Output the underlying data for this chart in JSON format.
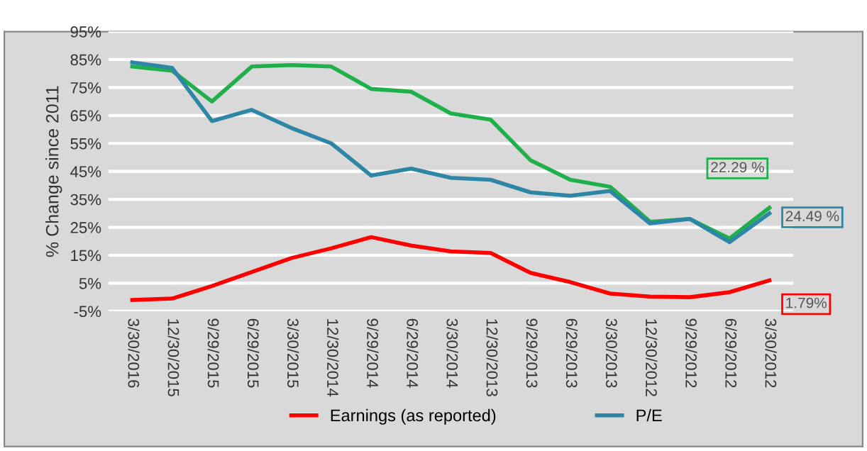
{
  "chart_data": {
    "type": "line",
    "ylabel": "% Change since 2011",
    "categories": [
      "3/30/2016",
      "12/30/2015",
      "9/29/2015",
      "6/29/2015",
      "3/30/2015",
      "12/30/2014",
      "9/29/2014",
      "6/29/2014",
      "3/30/2014",
      "12/30/2013",
      "9/29/2013",
      "6/29/2013",
      "3/30/2013",
      "12/30/2012",
      "9/29/2012",
      "6/29/2012",
      "3/30/2012"
    ],
    "series": [
      {
        "color": "#1fb04b",
        "values": [
          82.5,
          81,
          70,
          82.5,
          83,
          82.5,
          74.5,
          73.5,
          65.7,
          63.5,
          49,
          42,
          39.5,
          27,
          28,
          21,
          32
        ]
      },
      {
        "name": "Earnings (as reported)",
        "color": "#ff0000",
        "values": [
          -1,
          -0.5,
          4,
          9,
          14,
          17.5,
          21.5,
          18.5,
          16.4,
          15.8,
          8.7,
          5.4,
          1.3,
          0.2,
          0,
          1.8,
          6
        ]
      },
      {
        "name": "P/E",
        "color": "#2e86a6",
        "values": [
          84,
          82,
          63,
          67,
          60.5,
          55,
          43.5,
          46,
          42.7,
          42,
          37.5,
          36.3,
          38,
          26.4,
          28,
          19.7,
          30
        ]
      }
    ],
    "ylim": [
      -5,
      95
    ],
    "yticks": [
      {
        "value": -5,
        "label": "-5%"
      },
      {
        "value": 5,
        "label": "5%"
      },
      {
        "value": 15,
        "label": "15%"
      },
      {
        "value": 25,
        "label": "25%"
      },
      {
        "value": 35,
        "label": "35%"
      },
      {
        "value": 45,
        "label": "45%"
      },
      {
        "value": 55,
        "label": "55%"
      },
      {
        "value": 65,
        "label": "65%"
      },
      {
        "value": 75,
        "label": "75%"
      },
      {
        "value": 85,
        "label": "85%"
      },
      {
        "value": 95,
        "label": "95%"
      }
    ],
    "annotations": [
      {
        "text": "22.29 %",
        "x": "3/30/2012",
        "y": 32
      },
      {
        "text": "24.49 %",
        "x": "3/30/2012",
        "y": 30
      },
      {
        "text": "1.79%",
        "x": "3/30/2012",
        "y": 6
      }
    ],
    "grid": "y",
    "legend": "bottom",
    "marker": "none",
    "line_style": "solid"
  }
}
